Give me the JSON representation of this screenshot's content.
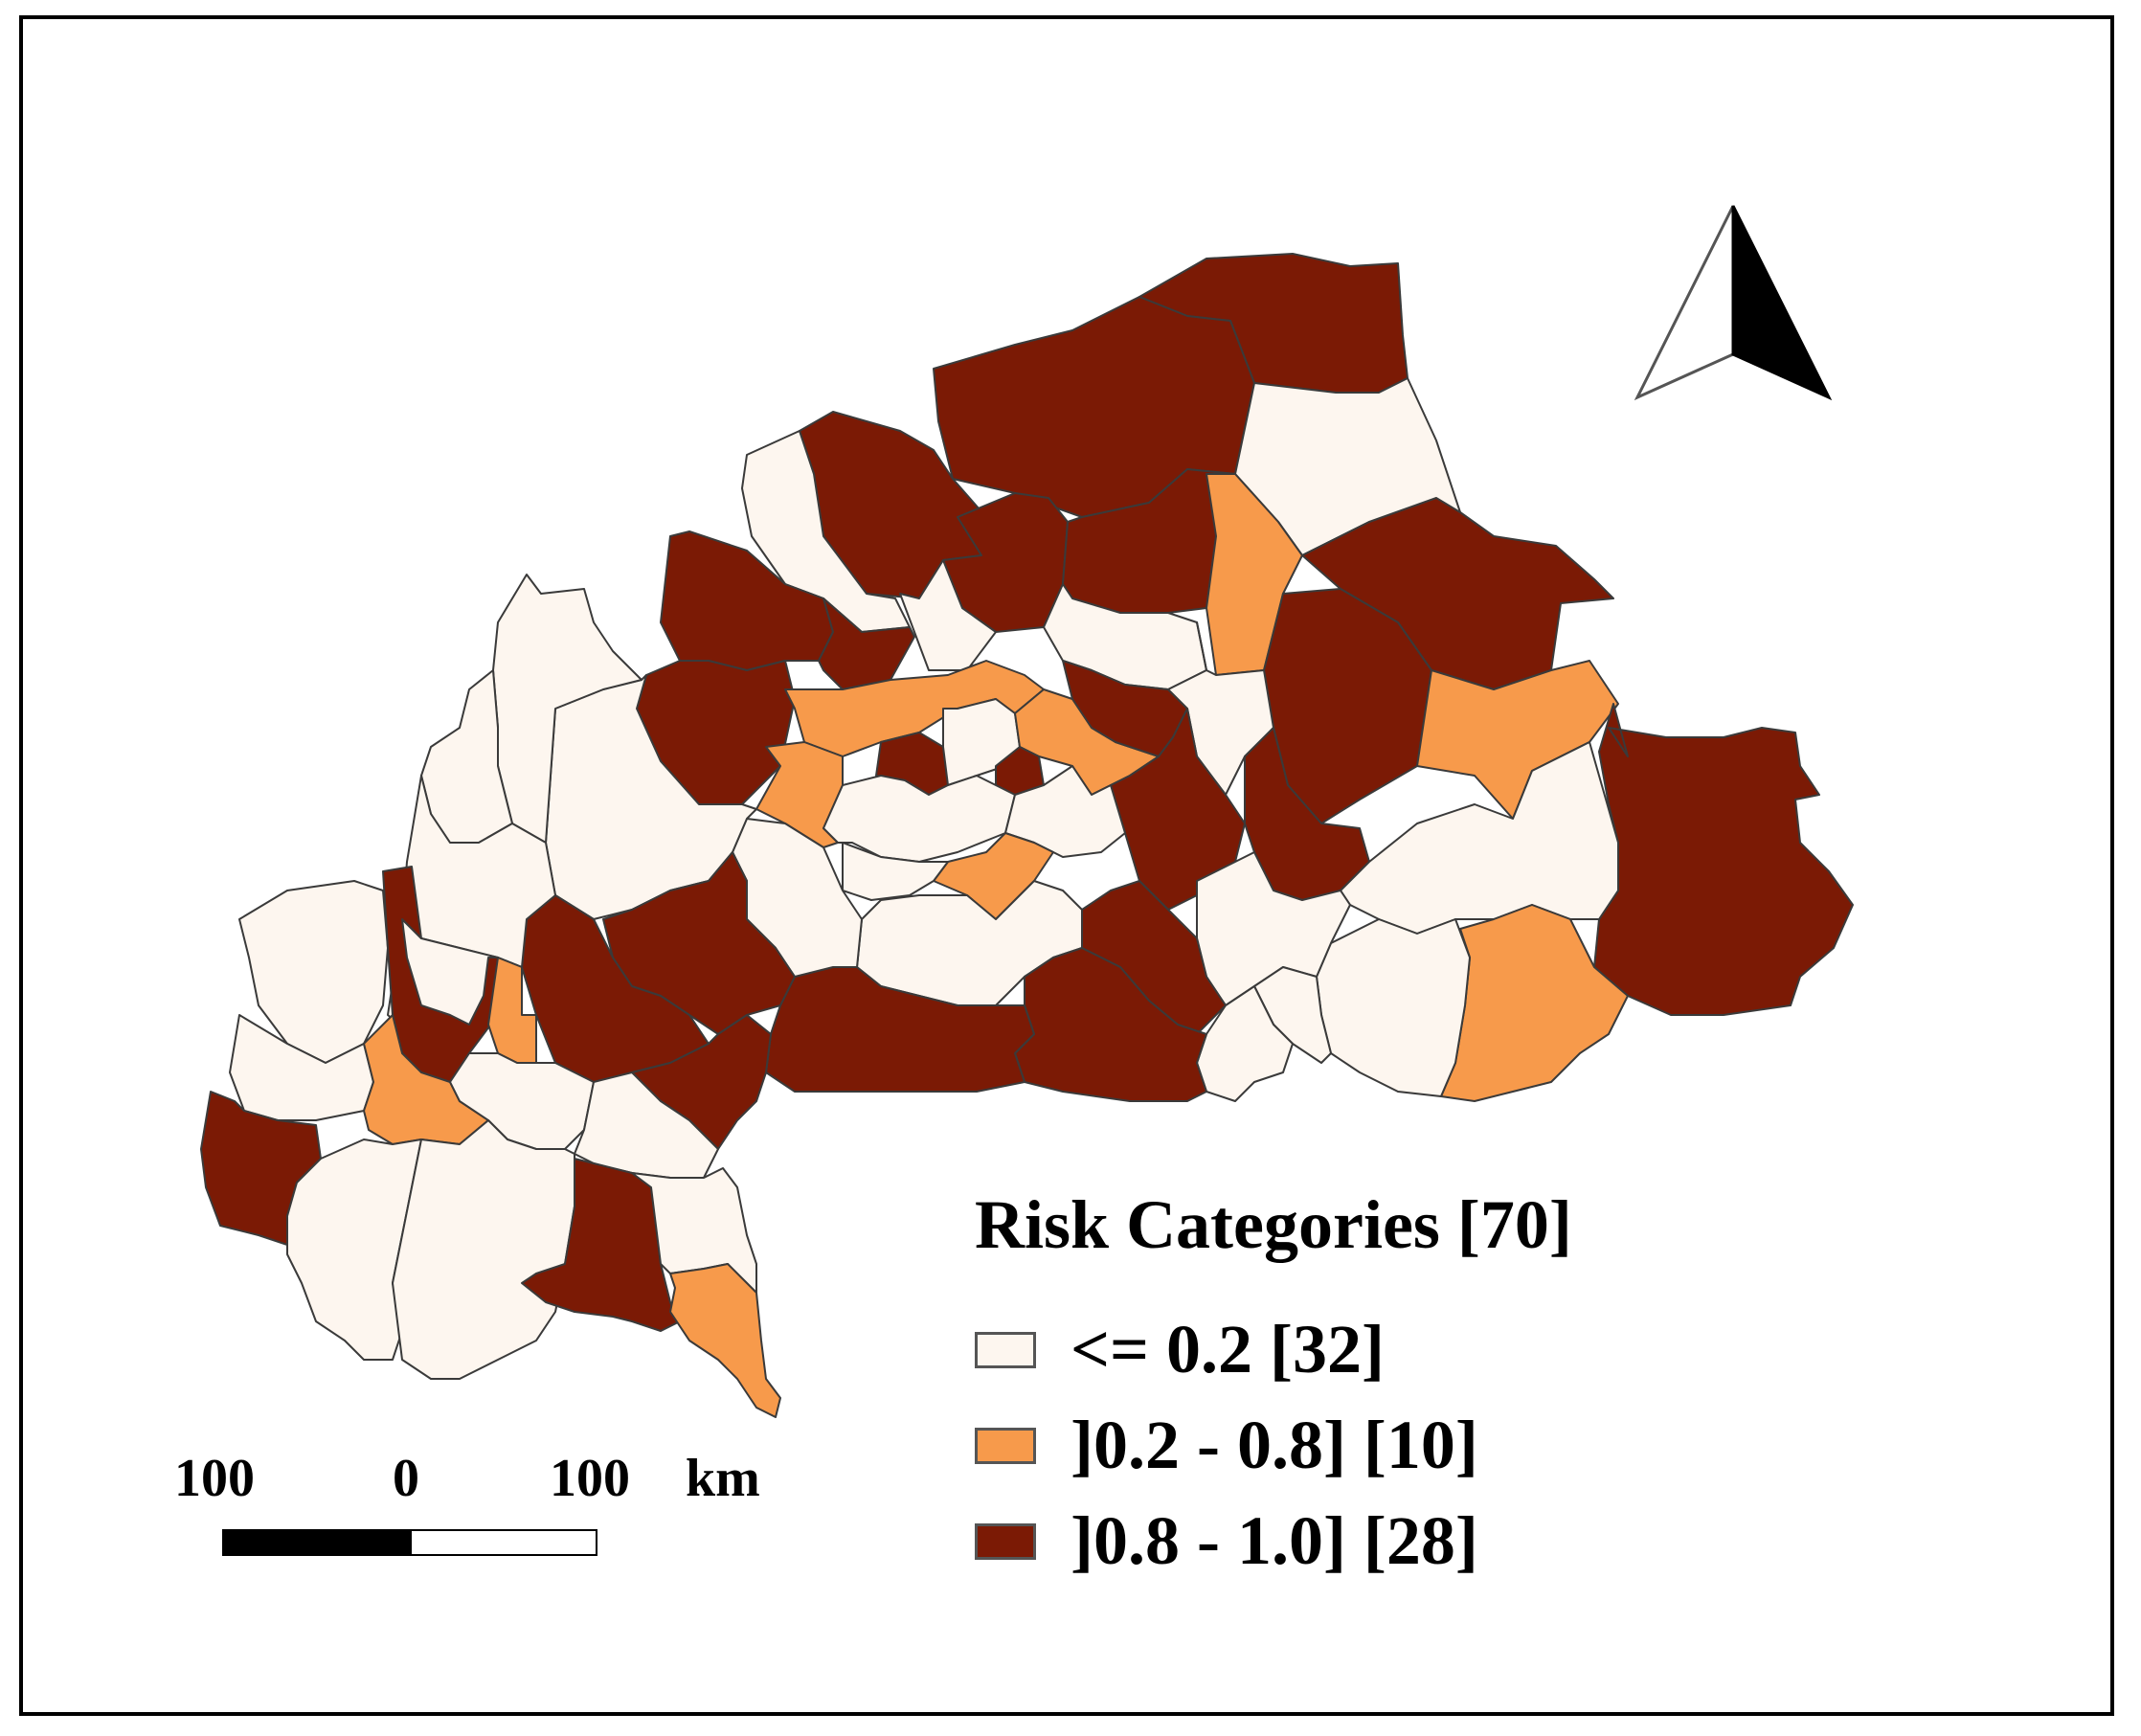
{
  "colors": {
    "low": "#fdf6ef",
    "medium": "#f79a4b",
    "high": "#7b1a05",
    "border": "#3a3a3a"
  },
  "legend": {
    "title": "Risk Categories [70]",
    "items": [
      {
        "label": "<= 0.2 [32]",
        "color": "#fdf6ef"
      },
      {
        "label": "]0.2 - 0.8] [10]",
        "color": "#f79a4b"
      },
      {
        "label": "]0.8 - 1.0] [28]",
        "color": "#7b1a05"
      }
    ]
  },
  "scale_bar": {
    "left_label": "100",
    "mid_label": "0",
    "right_label": "100",
    "unit": "km"
  },
  "north_arrow": {
    "icon": "north-arrow-icon"
  }
}
